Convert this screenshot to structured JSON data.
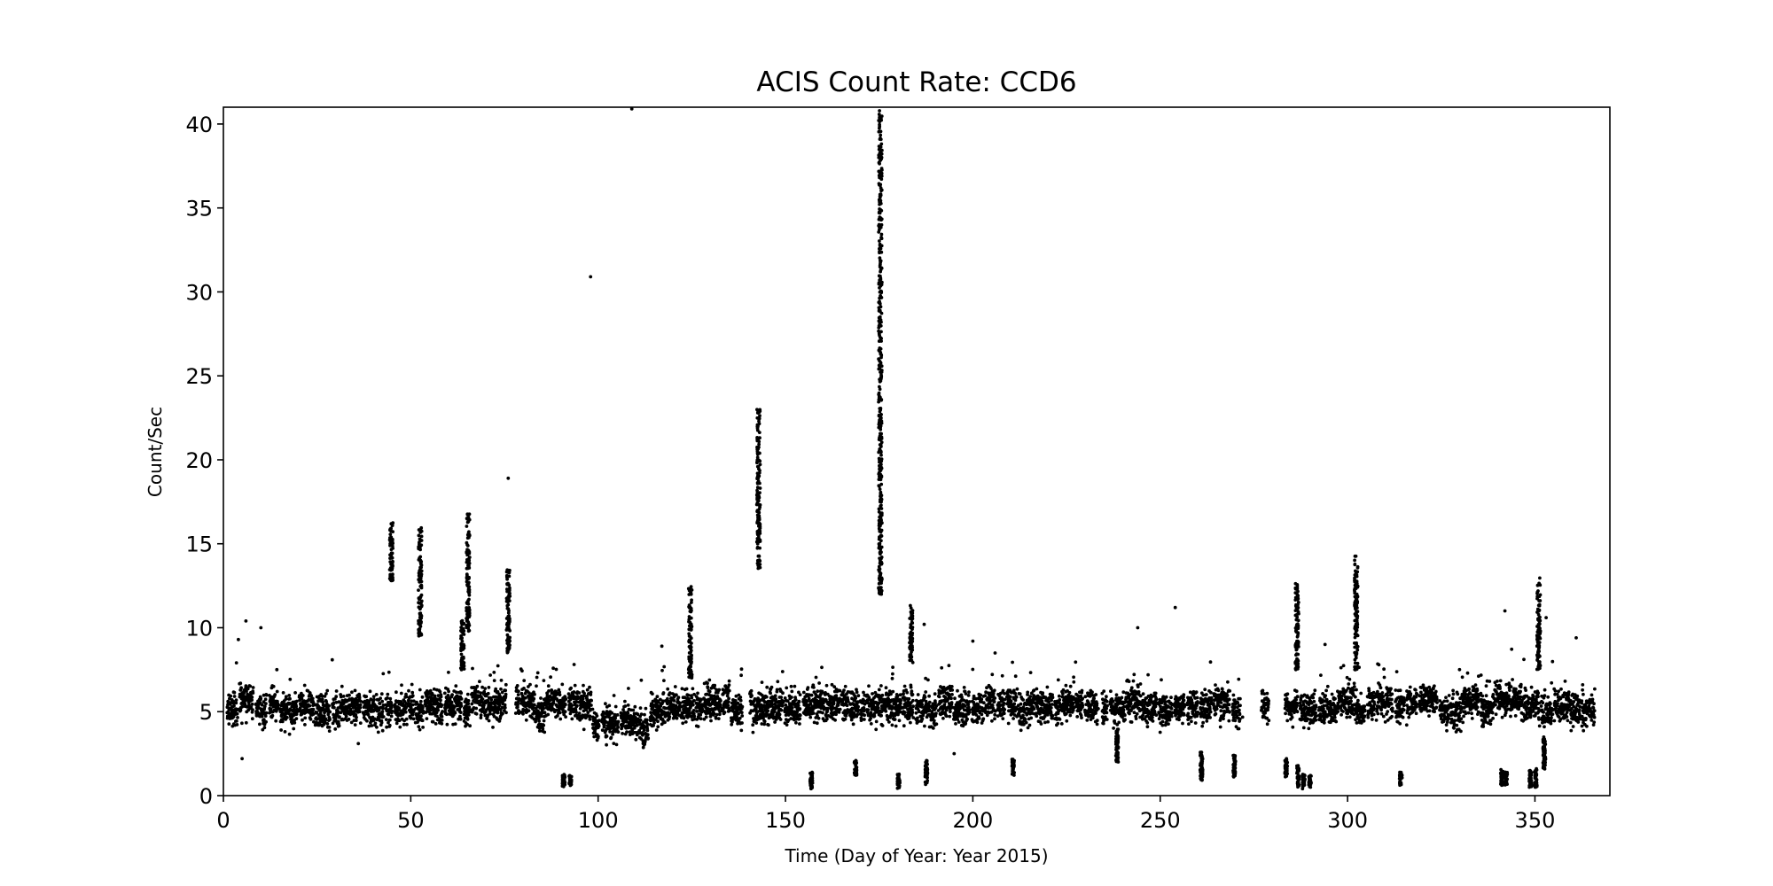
{
  "chart_data": {
    "type": "scatter",
    "title": "ACIS Count Rate: CCD6",
    "xlabel": "Time (Day of Year: Year 2015)",
    "ylabel": "Count/Sec",
    "xlim": [
      0,
      370
    ],
    "ylim": [
      0,
      41
    ],
    "xticks": [
      0,
      50,
      100,
      150,
      200,
      250,
      300,
      350
    ],
    "yticks": [
      0,
      5,
      10,
      15,
      20,
      25,
      30,
      35,
      40
    ],
    "grid": false,
    "marker_color": "#000000",
    "background": {
      "x_start": 1,
      "x_end": 366,
      "band_low": 3.8,
      "band_high": 6.8
    },
    "gaps": [
      [
        75.5,
        78
      ],
      [
        138.5,
        140.5
      ],
      [
        233.5,
        234.5
      ],
      [
        272,
        276.5
      ],
      [
        279,
        283
      ]
    ],
    "flares": [
      {
        "x": 44.8,
        "y_min": 12.8,
        "y_max": 16.3
      },
      {
        "x": 52.5,
        "y_min": 9.5,
        "y_max": 16.0
      },
      {
        "x": 63.8,
        "y_min": 7.5,
        "y_max": 10.5
      },
      {
        "x": 65.3,
        "y_min": 9.8,
        "y_max": 16.8
      },
      {
        "x": 76.0,
        "y_min": 8.5,
        "y_max": 13.5
      },
      {
        "x": 124.6,
        "y_min": 7.0,
        "y_max": 12.5
      },
      {
        "x": 142.8,
        "y_min": 13.5,
        "y_max": 23.1
      },
      {
        "x": 175.3,
        "y_min": 12.0,
        "y_max": 40.8
      },
      {
        "x": 183.5,
        "y_min": 8.0,
        "y_max": 11.4
      },
      {
        "x": 286.5,
        "y_min": 7.5,
        "y_max": 12.7
      },
      {
        "x": 302.3,
        "y_min": 7.5,
        "y_max": 14.3
      },
      {
        "x": 351.0,
        "y_min": 7.5,
        "y_max": 13.0
      }
    ],
    "low_clusters": [
      {
        "x": 90.8,
        "y_min": 0.5,
        "y_max": 1.3
      },
      {
        "x": 92.6,
        "y_min": 0.6,
        "y_max": 1.2
      },
      {
        "x": 156.9,
        "y_min": 0.4,
        "y_max": 1.4
      },
      {
        "x": 168.7,
        "y_min": 1.2,
        "y_max": 2.1
      },
      {
        "x": 180.2,
        "y_min": 0.4,
        "y_max": 1.3
      },
      {
        "x": 187.6,
        "y_min": 0.6,
        "y_max": 2.2
      },
      {
        "x": 210.8,
        "y_min": 1.2,
        "y_max": 2.2
      },
      {
        "x": 238.5,
        "y_min": 2.0,
        "y_max": 4.0
      },
      {
        "x": 261.0,
        "y_min": 0.9,
        "y_max": 2.6
      },
      {
        "x": 269.8,
        "y_min": 1.1,
        "y_max": 2.4
      },
      {
        "x": 283.6,
        "y_min": 1.1,
        "y_max": 2.2
      },
      {
        "x": 286.8,
        "y_min": 0.5,
        "y_max": 1.8
      },
      {
        "x": 288.3,
        "y_min": 0.4,
        "y_max": 1.3
      },
      {
        "x": 290.0,
        "y_min": 0.5,
        "y_max": 1.2
      },
      {
        "x": 314.2,
        "y_min": 0.6,
        "y_max": 1.4
      },
      {
        "x": 341.2,
        "y_min": 0.6,
        "y_max": 1.6
      },
      {
        "x": 342.3,
        "y_min": 0.6,
        "y_max": 1.4
      },
      {
        "x": 348.8,
        "y_min": 0.5,
        "y_max": 1.5
      },
      {
        "x": 350.2,
        "y_min": 0.5,
        "y_max": 1.6
      },
      {
        "x": 352.5,
        "y_min": 1.5,
        "y_max": 3.5
      }
    ],
    "outliers": [
      [
        109.0,
        40.9
      ],
      [
        98.0,
        30.9
      ],
      [
        76.0,
        18.9
      ],
      [
        4.0,
        9.3
      ],
      [
        6.0,
        10.4
      ],
      [
        10.0,
        10.0
      ],
      [
        5.0,
        2.2
      ],
      [
        117.0,
        8.9
      ],
      [
        187.0,
        10.2
      ],
      [
        200.0,
        9.2
      ],
      [
        244.0,
        10.0
      ],
      [
        254.0,
        11.2
      ],
      [
        294.0,
        9.0
      ],
      [
        342.0,
        11.0
      ],
      [
        353.0,
        10.6
      ],
      [
        361.0,
        9.4
      ],
      [
        36.0,
        3.1
      ],
      [
        195.0,
        2.5
      ]
    ]
  }
}
